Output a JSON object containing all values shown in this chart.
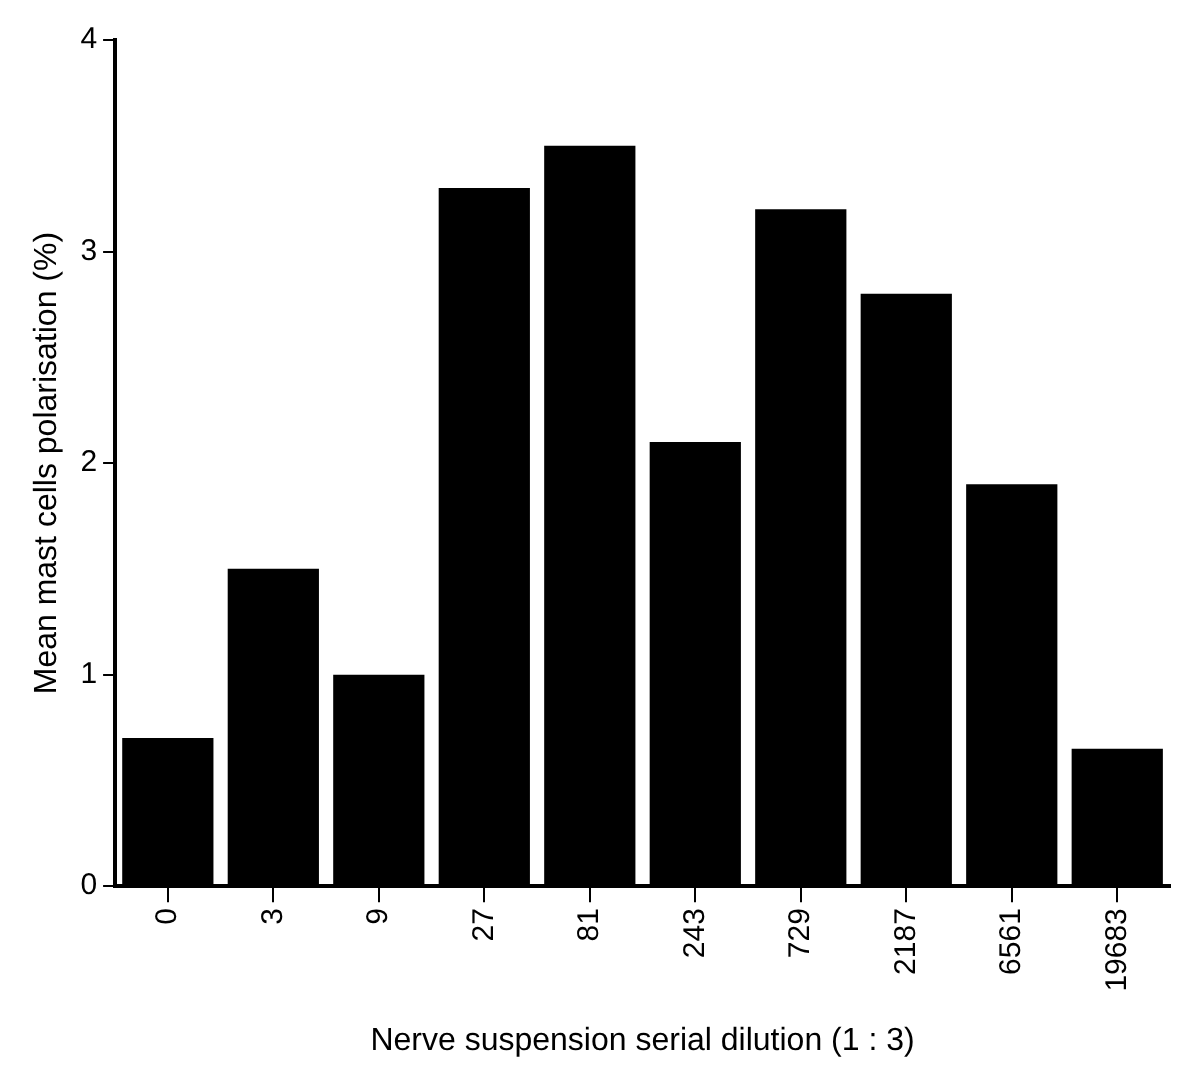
{
  "chart_data": {
    "type": "bar",
    "xlabel": "Nerve suspension serial dilution (1 : 3)",
    "ylabel": "Mean mast cells polarisation (%)",
    "categories": [
      "0",
      "3",
      "9",
      "27",
      "81",
      "243",
      "729",
      "2187",
      "6561",
      "19683"
    ],
    "values": [
      0.7,
      1.5,
      1.0,
      3.3,
      3.5,
      2.1,
      3.2,
      2.8,
      1.9,
      0.65
    ],
    "color": "#000000",
    "ylim": [
      0,
      4
    ],
    "yticks": [
      0,
      1,
      2,
      3,
      4
    ],
    "grid": false,
    "legend": false
  }
}
